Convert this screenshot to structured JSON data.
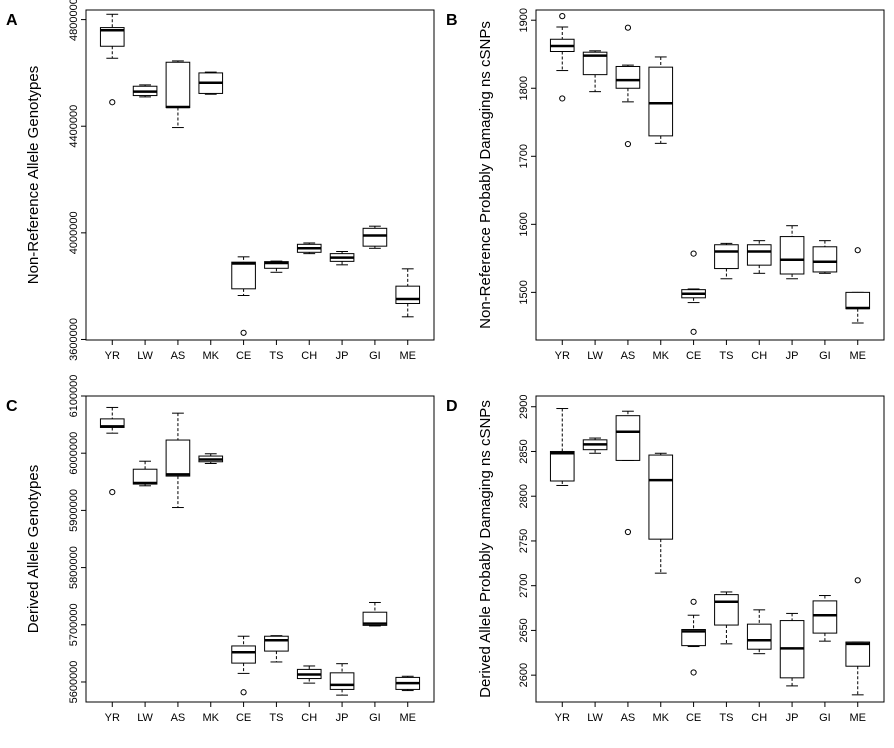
{
  "figure": {
    "colors": {
      "ink": "#000000",
      "background": "#ffffff",
      "box_fill": "#ffffff"
    }
  },
  "chart_data": [
    {
      "id": "A",
      "panel_label": "A",
      "type": "box",
      "title": "",
      "xlabel": "",
      "ylabel": "Non-Reference Allele Genotypes",
      "categories": [
        "YR",
        "LW",
        "AS",
        "MK",
        "CE",
        "TS",
        "CH",
        "JP",
        "GI",
        "ME"
      ],
      "ylim": [
        3598000,
        4836000
      ],
      "yticks": [
        3600000,
        4000000,
        4400000,
        4800000
      ],
      "ytick_labels": [
        "3600000",
        "4000000",
        "4400000",
        "4800000"
      ],
      "boxes": [
        {
          "min": 4655000,
          "q1": 4700000,
          "median": 4760000,
          "q3": 4770000,
          "max": 4820000,
          "outliers": [
            4490000
          ]
        },
        {
          "min": 4510000,
          "q1": 4515000,
          "median": 4530000,
          "q3": 4550000,
          "max": 4555000,
          "outliers": []
        },
        {
          "min": 4395000,
          "q1": 4470000,
          "median": 4472000,
          "q3": 4640000,
          "max": 4645000,
          "outliers": []
        },
        {
          "min": 4520000,
          "q1": 4523000,
          "median": 4563000,
          "q3": 4600000,
          "max": 4603000,
          "outliers": []
        },
        {
          "min": 3765000,
          "q1": 3790000,
          "median": 3885000,
          "q3": 3890000,
          "max": 3910000,
          "outliers": [
            3625000
          ]
        },
        {
          "min": 3852000,
          "q1": 3867000,
          "median": 3887000,
          "q3": 3892000,
          "max": 3894000,
          "outliers": []
        },
        {
          "min": 3922000,
          "q1": 3927000,
          "median": 3942000,
          "q3": 3957000,
          "max": 3962000,
          "outliers": []
        },
        {
          "min": 3880000,
          "q1": 3893000,
          "median": 3907000,
          "q3": 3922000,
          "max": 3930000,
          "outliers": []
        },
        {
          "min": 3942000,
          "q1": 3950000,
          "median": 3990000,
          "q3": 4017000,
          "max": 4025000,
          "outliers": []
        },
        {
          "min": 3685000,
          "q1": 3735000,
          "median": 3752000,
          "q3": 3800000,
          "max": 3865000,
          "outliers": []
        }
      ]
    },
    {
      "id": "B",
      "panel_label": "B",
      "type": "box",
      "title": "",
      "xlabel": "",
      "ylabel": "Non-Reference Probably Damaging ns cSNPs",
      "categories": [
        "YR",
        "LW",
        "AS",
        "MK",
        "CE",
        "TS",
        "CH",
        "JP",
        "GI",
        "ME"
      ],
      "ylim": [
        1430,
        1915
      ],
      "yticks": [
        1500,
        1600,
        1700,
        1800,
        1900
      ],
      "ytick_labels": [
        "1500",
        "1600",
        "1700",
        "1800",
        "1900"
      ],
      "boxes": [
        {
          "min": 1826,
          "q1": 1854,
          "median": 1862,
          "q3": 1872,
          "max": 1890,
          "outliers": [
            1906,
            1785
          ]
        },
        {
          "min": 1795,
          "q1": 1820,
          "median": 1848,
          "q3": 1853,
          "max": 1855,
          "outliers": []
        },
        {
          "min": 1780,
          "q1": 1800,
          "median": 1812,
          "q3": 1832,
          "max": 1834,
          "outliers": [
            1889,
            1718
          ]
        },
        {
          "min": 1719,
          "q1": 1730,
          "median": 1778,
          "q3": 1831,
          "max": 1846,
          "outliers": []
        },
        {
          "min": 1485,
          "q1": 1492,
          "median": 1498,
          "q3": 1504,
          "max": 1505,
          "outliers": [
            1557,
            1442
          ]
        },
        {
          "min": 1520,
          "q1": 1535,
          "median": 1560,
          "q3": 1570,
          "max": 1572,
          "outliers": []
        },
        {
          "min": 1528,
          "q1": 1540,
          "median": 1560,
          "q3": 1570,
          "max": 1576,
          "outliers": []
        },
        {
          "min": 1520,
          "q1": 1527,
          "median": 1548,
          "q3": 1582,
          "max": 1598,
          "outliers": []
        },
        {
          "min": 1528,
          "q1": 1530,
          "median": 1545,
          "q3": 1567,
          "max": 1576,
          "outliers": []
        },
        {
          "min": 1455,
          "q1": 1476,
          "median": 1477,
          "q3": 1500,
          "max": 1500,
          "outliers": [
            1562
          ]
        }
      ]
    },
    {
      "id": "C",
      "panel_label": "C",
      "type": "box",
      "title": "",
      "xlabel": "",
      "ylabel": "Derived Allele Genotypes",
      "categories": [
        "YR",
        "LW",
        "AS",
        "MK",
        "CE",
        "TS",
        "CH",
        "JP",
        "GI",
        "ME"
      ],
      "ylim": [
        5565000,
        6100000
      ],
      "yticks": [
        5600000,
        5700000,
        5800000,
        5900000,
        6000000,
        6100000
      ],
      "ytick_labels": [
        "5600000",
        "5700000",
        "5800000",
        "5900000",
        "6000000",
        "6100000"
      ],
      "boxes": [
        {
          "min": 6035000,
          "q1": 6045000,
          "median": 6047000,
          "q3": 6060000,
          "max": 6080000,
          "outliers": [
            5932000
          ]
        },
        {
          "min": 5943000,
          "q1": 5946000,
          "median": 5948000,
          "q3": 5972000,
          "max": 5986000,
          "outliers": []
        },
        {
          "min": 5905000,
          "q1": 5960000,
          "median": 5963000,
          "q3": 6023000,
          "max": 6070000,
          "outliers": []
        },
        {
          "min": 5982000,
          "q1": 5985000,
          "median": 5989000,
          "q3": 5995000,
          "max": 5999000,
          "outliers": []
        },
        {
          "min": 5615000,
          "q1": 5633000,
          "median": 5652000,
          "q3": 5663000,
          "max": 5680000,
          "outliers": [
            5582000
          ]
        },
        {
          "min": 5635000,
          "q1": 5654000,
          "median": 5673000,
          "q3": 5680000,
          "max": 5681000,
          "outliers": []
        },
        {
          "min": 5598000,
          "q1": 5606000,
          "median": 5613000,
          "q3": 5622000,
          "max": 5628000,
          "outliers": []
        },
        {
          "min": 5577000,
          "q1": 5587000,
          "median": 5595000,
          "q3": 5616000,
          "max": 5632000,
          "outliers": []
        },
        {
          "min": 5698000,
          "q1": 5699000,
          "median": 5702000,
          "q3": 5722000,
          "max": 5739000,
          "outliers": []
        },
        {
          "min": 5585000,
          "q1": 5587000,
          "median": 5598000,
          "q3": 5608000,
          "max": 5610000,
          "outliers": []
        }
      ]
    },
    {
      "id": "D",
      "panel_label": "D",
      "type": "box",
      "title": "",
      "xlabel": "",
      "ylabel": "Derived Allele Probably Damaging ns cSNPs",
      "categories": [
        "YR",
        "LW",
        "AS",
        "MK",
        "CE",
        "TS",
        "CH",
        "JP",
        "GI",
        "ME"
      ],
      "ylim": [
        2570,
        2912
      ],
      "yticks": [
        2600,
        2650,
        2700,
        2750,
        2800,
        2850,
        2900
      ],
      "ytick_labels": [
        "2600",
        "2650",
        "2700",
        "2750",
        "2800",
        "2850",
        "2900"
      ],
      "boxes": [
        {
          "min": 2812,
          "q1": 2817,
          "median": 2848,
          "q3": 2850,
          "max": 2898,
          "outliers": []
        },
        {
          "min": 2848,
          "q1": 2852,
          "median": 2858,
          "q3": 2863,
          "max": 2865,
          "outliers": []
        },
        {
          "min": 2840,
          "q1": 2840,
          "median": 2872,
          "q3": 2890,
          "max": 2895,
          "outliers": [
            2760
          ]
        },
        {
          "min": 2714,
          "q1": 2752,
          "median": 2818,
          "q3": 2846,
          "max": 2848,
          "outliers": []
        },
        {
          "min": 2632,
          "q1": 2633,
          "median": 2649,
          "q3": 2651,
          "max": 2667,
          "outliers": [
            2682,
            2603
          ]
        },
        {
          "min": 2635,
          "q1": 2656,
          "median": 2682,
          "q3": 2690,
          "max": 2693,
          "outliers": []
        },
        {
          "min": 2624,
          "q1": 2629,
          "median": 2639,
          "q3": 2657,
          "max": 2673,
          "outliers": []
        },
        {
          "min": 2588,
          "q1": 2597,
          "median": 2630,
          "q3": 2661,
          "max": 2669,
          "outliers": []
        },
        {
          "min": 2638,
          "q1": 2647,
          "median": 2667,
          "q3": 2683,
          "max": 2689,
          "outliers": []
        },
        {
          "min": 2578,
          "q1": 2610,
          "median": 2635,
          "q3": 2637,
          "max": 2637,
          "outliers": [
            2706
          ]
        }
      ]
    }
  ]
}
